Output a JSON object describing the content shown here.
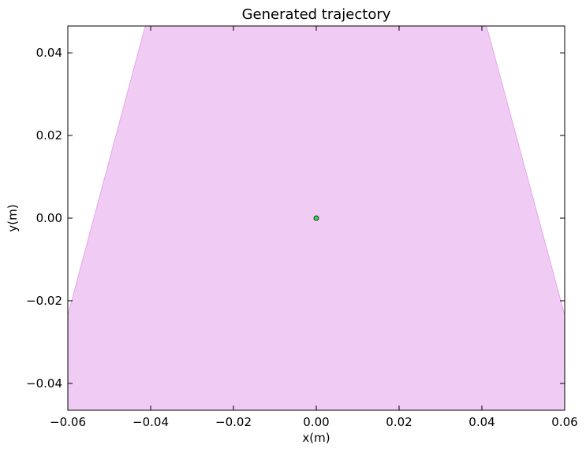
{
  "chart_data": {
    "type": "area",
    "title": "Generated trajectory",
    "xlabel": "x(m)",
    "ylabel": "y(m)",
    "xlim": [
      -0.06,
      0.06
    ],
    "ylim": [
      -0.0465,
      0.0465
    ],
    "xticks": [
      "−0.06",
      "−0.04",
      "−0.02",
      "0.00",
      "0.02",
      "0.04",
      "0.06"
    ],
    "xtick_values": [
      -0.06,
      -0.04,
      -0.02,
      0.0,
      0.02,
      0.04,
      0.06
    ],
    "yticks": [
      "−0.04",
      "−0.02",
      "0.00",
      "0.02",
      "0.04"
    ],
    "ytick_values": [
      -0.04,
      -0.02,
      0.0,
      0.02,
      0.04
    ],
    "grid": false,
    "region": {
      "fill_color": "#f0ccf4",
      "edge_color": "#e6a6ea",
      "points": [
        [
          -0.0413,
          0.0465
        ],
        [
          0.0411,
          0.0465
        ],
        [
          0.06,
          -0.0235
        ],
        [
          0.06,
          -0.0465
        ],
        [
          -0.06,
          -0.0465
        ],
        [
          -0.06,
          -0.0235
        ]
      ]
    },
    "points": [
      {
        "x": 0.0,
        "y": 0.0,
        "color": "#33dd55",
        "edge": "#000000"
      }
    ]
  }
}
